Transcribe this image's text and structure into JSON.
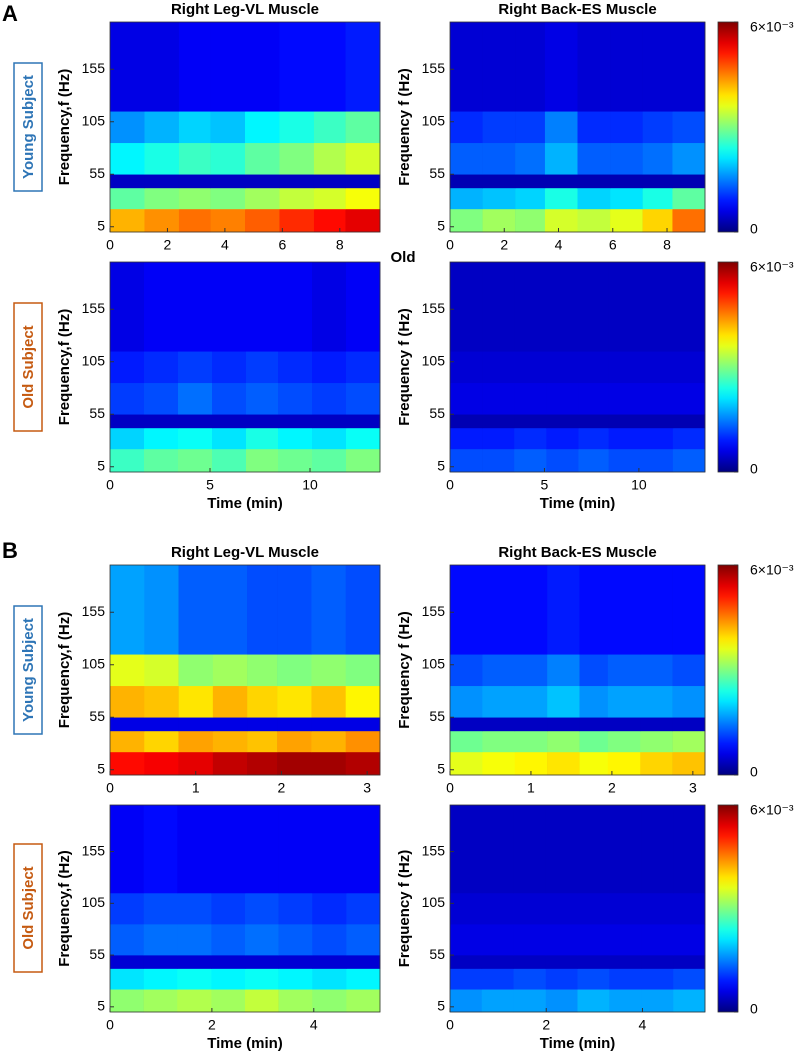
{
  "section_labels": [
    "A",
    "B"
  ],
  "row_labels": [
    "Young Subject",
    "Old Subject",
    "Young Subject",
    "Old Subject"
  ],
  "annotation": "Old",
  "chart_data": [
    {
      "type": "heatmap",
      "title": "Right Leg-VL Muscle",
      "ylabel": "Frequency,f (Hz)",
      "xlim": [
        0,
        9.4
      ],
      "xticks": [
        0,
        2,
        4,
        6,
        8
      ],
      "ylim": [
        0,
        200
      ],
      "yticks": [
        5,
        55,
        105,
        155
      ],
      "xbins": [
        0,
        1.2,
        2.4,
        3.5,
        4.7,
        5.9,
        7.1,
        8.2,
        9.4
      ],
      "ybins": [
        0,
        22,
        42,
        55,
        85,
        115,
        200
      ],
      "values": [
        [
          0.0042,
          0.0044,
          0.0046,
          0.0045,
          0.0047,
          0.005,
          0.0052,
          0.0054
        ],
        [
          0.0028,
          0.003,
          0.0031,
          0.003,
          0.0032,
          0.0034,
          0.0035,
          0.0037
        ],
        [
          0.0004,
          0.0004,
          0.0004,
          0.0004,
          0.0004,
          0.0004,
          0.0004,
          0.0004
        ],
        [
          0.0022,
          0.0024,
          0.0026,
          0.0025,
          0.0028,
          0.003,
          0.0033,
          0.0035
        ],
        [
          0.0016,
          0.0018,
          0.002,
          0.0019,
          0.0022,
          0.0024,
          0.0026,
          0.0028
        ],
        [
          0.0006,
          0.0006,
          0.0007,
          0.0007,
          0.0007,
          0.0008,
          0.0008,
          0.0009
        ]
      ]
    },
    {
      "type": "heatmap",
      "title": "Right Back-ES Muscle",
      "ylabel": "Frequency f (Hz)",
      "xlim": [
        0,
        9.4
      ],
      "xticks": [
        0,
        2,
        4,
        6,
        8
      ],
      "ylim": [
        0,
        200
      ],
      "yticks": [
        5,
        55,
        105,
        155
      ],
      "xbins": [
        0,
        1.2,
        2.4,
        3.5,
        4.7,
        5.9,
        7.1,
        8.2,
        9.4
      ],
      "ybins": [
        0,
        22,
        42,
        55,
        85,
        115,
        200
      ],
      "values": [
        [
          0.003,
          0.0032,
          0.0031,
          0.0035,
          0.0034,
          0.0036,
          0.004,
          0.0046
        ],
        [
          0.0018,
          0.0019,
          0.002,
          0.0024,
          0.002,
          0.0021,
          0.0024,
          0.0028
        ],
        [
          0.0003,
          0.0003,
          0.0003,
          0.0003,
          0.0003,
          0.0003,
          0.0003,
          0.0003
        ],
        [
          0.0013,
          0.0013,
          0.0014,
          0.0018,
          0.0013,
          0.0013,
          0.0014,
          0.0016
        ],
        [
          0.001,
          0.0011,
          0.0011,
          0.0015,
          0.001,
          0.001,
          0.0011,
          0.0012
        ],
        [
          0.0005,
          0.0005,
          0.0005,
          0.0006,
          0.0005,
          0.0005,
          0.0005,
          0.0005
        ]
      ],
      "colorbar": {
        "lim": [
          0,
          0.006
        ],
        "ticks": [
          0,
          {
            "value": 0.006,
            "label": "6×10⁻³"
          }
        ]
      }
    },
    {
      "type": "heatmap",
      "ylabel": "Frequency,f (Hz)",
      "xlabel": "Time (min)",
      "xlim": [
        0,
        13.5
      ],
      "xticks": [
        0,
        5,
        10
      ],
      "ylim": [
        0,
        200
      ],
      "yticks": [
        5,
        55,
        105,
        155
      ],
      "xbins": [
        0,
        1.7,
        3.4,
        5.1,
        6.8,
        8.4,
        10.1,
        11.8,
        13.5
      ],
      "ybins": [
        0,
        22,
        42,
        55,
        85,
        115,
        200
      ],
      "values": [
        [
          0.0026,
          0.0028,
          0.0029,
          0.0027,
          0.003,
          0.0029,
          0.0028,
          0.003
        ],
        [
          0.002,
          0.0022,
          0.0023,
          0.0021,
          0.0024,
          0.0022,
          0.0021,
          0.0023
        ],
        [
          0.0004,
          0.0004,
          0.0004,
          0.0004,
          0.0004,
          0.0004,
          0.0004,
          0.0004
        ],
        [
          0.0011,
          0.0012,
          0.0014,
          0.0012,
          0.0013,
          0.0012,
          0.0011,
          0.0012
        ],
        [
          0.0009,
          0.001,
          0.0011,
          0.001,
          0.0011,
          0.001,
          0.0009,
          0.001
        ],
        [
          0.0006,
          0.0007,
          0.0007,
          0.0007,
          0.0007,
          0.0007,
          0.0006,
          0.0007
        ]
      ]
    },
    {
      "type": "heatmap",
      "ylabel": "Frequency f (Hz)",
      "xlabel": "Time (min)",
      "xlim": [
        0,
        13.5
      ],
      "xticks": [
        0,
        5,
        10
      ],
      "ylim": [
        0,
        200
      ],
      "yticks": [
        5,
        55,
        105,
        155
      ],
      "xbins": [
        0,
        1.7,
        3.4,
        5.1,
        6.8,
        8.4,
        10.1,
        11.8,
        13.5
      ],
      "ybins": [
        0,
        22,
        42,
        55,
        85,
        115,
        200
      ],
      "values": [
        [
          0.0012,
          0.0012,
          0.0013,
          0.0012,
          0.0013,
          0.0012,
          0.0012,
          0.0013
        ],
        [
          0.0009,
          0.0009,
          0.001,
          0.0009,
          0.001,
          0.0009,
          0.0009,
          0.001
        ],
        [
          0.0003,
          0.0003,
          0.0003,
          0.0003,
          0.0003,
          0.0003,
          0.0003,
          0.0003
        ],
        [
          0.0006,
          0.0006,
          0.0006,
          0.0006,
          0.0006,
          0.0006,
          0.0006,
          0.0006
        ],
        [
          0.0005,
          0.0005,
          0.0005,
          0.0005,
          0.0005,
          0.0005,
          0.0005,
          0.0005
        ],
        [
          0.0004,
          0.0004,
          0.0004,
          0.0004,
          0.0004,
          0.0004,
          0.0004,
          0.0004
        ]
      ],
      "colorbar": {
        "lim": [
          0,
          0.006
        ],
        "ticks": [
          0,
          {
            "value": 0.006,
            "label": "6×10⁻³"
          }
        ]
      }
    },
    {
      "type": "heatmap",
      "title": "Right Leg-VL Muscle",
      "ylabel": "Frequency,f (Hz)",
      "xlim": [
        0,
        3.15
      ],
      "xticks": [
        0,
        1,
        2,
        3
      ],
      "ylim": [
        0,
        200
      ],
      "yticks": [
        5,
        55,
        105,
        155
      ],
      "xbins": [
        0,
        0.4,
        0.8,
        1.2,
        1.6,
        1.95,
        2.35,
        2.75,
        3.15
      ],
      "ybins": [
        0,
        22,
        42,
        55,
        85,
        115,
        200
      ],
      "values": [
        [
          0.0052,
          0.0053,
          0.0054,
          0.0056,
          0.0057,
          0.0058,
          0.0058,
          0.0057
        ],
        [
          0.0042,
          0.004,
          0.0043,
          0.0042,
          0.0041,
          0.0043,
          0.0042,
          0.0044
        ],
        [
          0.0006,
          0.0006,
          0.0006,
          0.0006,
          0.0006,
          0.0006,
          0.0006,
          0.0006
        ],
        [
          0.0042,
          0.0041,
          0.0039,
          0.0042,
          0.004,
          0.0039,
          0.0041,
          0.0038
        ],
        [
          0.0036,
          0.0035,
          0.0031,
          0.0032,
          0.0031,
          0.003,
          0.0031,
          0.003
        ],
        [
          0.0017,
          0.0016,
          0.0013,
          0.0013,
          0.0012,
          0.0012,
          0.0013,
          0.0012
        ]
      ]
    },
    {
      "type": "heatmap",
      "title": "Right Back-ES Muscle",
      "ylabel": "Frequency f (Hz)",
      "xlim": [
        0,
        3.15
      ],
      "xticks": [
        0,
        1,
        2,
        3
      ],
      "ylim": [
        0,
        200
      ],
      "yticks": [
        5,
        55,
        105,
        155
      ],
      "xbins": [
        0,
        0.4,
        0.8,
        1.2,
        1.6,
        1.95,
        2.35,
        2.75,
        3.15
      ],
      "ybins": [
        0,
        22,
        42,
        55,
        85,
        115,
        200
      ],
      "values": [
        [
          0.0036,
          0.0037,
          0.0038,
          0.0039,
          0.0037,
          0.0038,
          0.004,
          0.0041
        ],
        [
          0.0029,
          0.003,
          0.003,
          0.0031,
          0.0029,
          0.003,
          0.0031,
          0.0032
        ],
        [
          0.0004,
          0.0004,
          0.0004,
          0.0004,
          0.0004,
          0.0004,
          0.0004,
          0.0004
        ],
        [
          0.0016,
          0.0017,
          0.0017,
          0.0019,
          0.0016,
          0.0017,
          0.0017,
          0.0016
        ],
        [
          0.0012,
          0.0013,
          0.0013,
          0.0015,
          0.0012,
          0.0013,
          0.0013,
          0.0012
        ],
        [
          0.0008,
          0.0008,
          0.0008,
          0.0009,
          0.0008,
          0.0008,
          0.0008,
          0.0008
        ]
      ],
      "colorbar": {
        "lim": [
          0,
          0.006
        ],
        "ticks": [
          0,
          {
            "value": 0.006,
            "label": "6×10⁻³"
          }
        ]
      }
    },
    {
      "type": "heatmap",
      "ylabel": "Frequency,f (Hz)",
      "xlabel": "Time (min)",
      "xlim": [
        0,
        5.3
      ],
      "xticks": [
        0,
        2,
        4
      ],
      "ylim": [
        0,
        200
      ],
      "yticks": [
        5,
        55,
        105,
        155
      ],
      "xbins": [
        0,
        0.66,
        1.32,
        1.99,
        2.65,
        3.31,
        3.97,
        4.64,
        5.3
      ],
      "ybins": [
        0,
        22,
        42,
        55,
        85,
        115,
        200
      ],
      "values": [
        [
          0.0031,
          0.0032,
          0.0033,
          0.0032,
          0.0034,
          0.0032,
          0.0031,
          0.0032
        ],
        [
          0.0021,
          0.0022,
          0.0023,
          0.0022,
          0.0023,
          0.0022,
          0.0021,
          0.0022
        ],
        [
          0.0005,
          0.0005,
          0.0005,
          0.0005,
          0.0005,
          0.0005,
          0.0005,
          0.0005
        ],
        [
          0.0013,
          0.0014,
          0.0014,
          0.0013,
          0.0014,
          0.0013,
          0.0012,
          0.0013
        ],
        [
          0.0011,
          0.0012,
          0.0012,
          0.0011,
          0.0012,
          0.0011,
          0.001,
          0.0011
        ],
        [
          0.0007,
          0.0008,
          0.0007,
          0.0007,
          0.0007,
          0.0007,
          0.0007,
          0.0007
        ]
      ]
    },
    {
      "type": "heatmap",
      "ylabel": "Frequency f (Hz)",
      "xlabel": "Time (min)",
      "xlim": [
        0,
        5.3
      ],
      "xticks": [
        0,
        2,
        4
      ],
      "ylim": [
        0,
        200
      ],
      "yticks": [
        5,
        55,
        105,
        155
      ],
      "xbins": [
        0,
        0.66,
        1.32,
        1.99,
        2.65,
        3.31,
        3.97,
        4.64,
        5.3
      ],
      "ybins": [
        0,
        22,
        42,
        55,
        85,
        115,
        200
      ],
      "values": [
        [
          0.0016,
          0.0017,
          0.0017,
          0.0016,
          0.0018,
          0.0017,
          0.0017,
          0.0018
        ],
        [
          0.0011,
          0.0011,
          0.0012,
          0.0011,
          0.0012,
          0.0011,
          0.0011,
          0.0012
        ],
        [
          0.0004,
          0.0004,
          0.0004,
          0.0004,
          0.0004,
          0.0004,
          0.0004,
          0.0004
        ],
        [
          0.0006,
          0.0006,
          0.0006,
          0.0006,
          0.0006,
          0.0006,
          0.0006,
          0.0006
        ],
        [
          0.0005,
          0.0005,
          0.0005,
          0.0005,
          0.0005,
          0.0005,
          0.0005,
          0.0005
        ],
        [
          0.0004,
          0.0004,
          0.0004,
          0.0004,
          0.0004,
          0.0004,
          0.0004,
          0.0004
        ]
      ],
      "colorbar": {
        "lim": [
          0,
          0.006
        ],
        "ticks": [
          0,
          {
            "value": 0.006,
            "label": "6×10⁻³"
          }
        ]
      }
    }
  ]
}
